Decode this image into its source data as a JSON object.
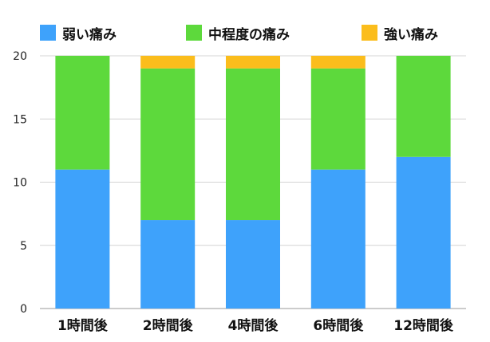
{
  "chart_data": {
    "type": "bar",
    "stacked": true,
    "categories": [
      "1時間後",
      "2時間後",
      "4時間後",
      "6時間後",
      "12時間後"
    ],
    "series": [
      {
        "name": "弱い痛み",
        "color": "#3ea2fb",
        "values": [
          11,
          7,
          7,
          11,
          12
        ]
      },
      {
        "name": "中程度の痛み",
        "color": "#5dd93c",
        "values": [
          9,
          12,
          12,
          8,
          8
        ]
      },
      {
        "name": "強い痛み",
        "color": "#fbbd1c",
        "values": [
          0,
          1,
          1,
          1,
          0
        ]
      }
    ],
    "ylim": [
      0,
      20
    ],
    "yticks": [
      0,
      5,
      10,
      15,
      20
    ],
    "grid": true,
    "legend_position": "top",
    "title": "",
    "xlabel": "",
    "ylabel": ""
  }
}
